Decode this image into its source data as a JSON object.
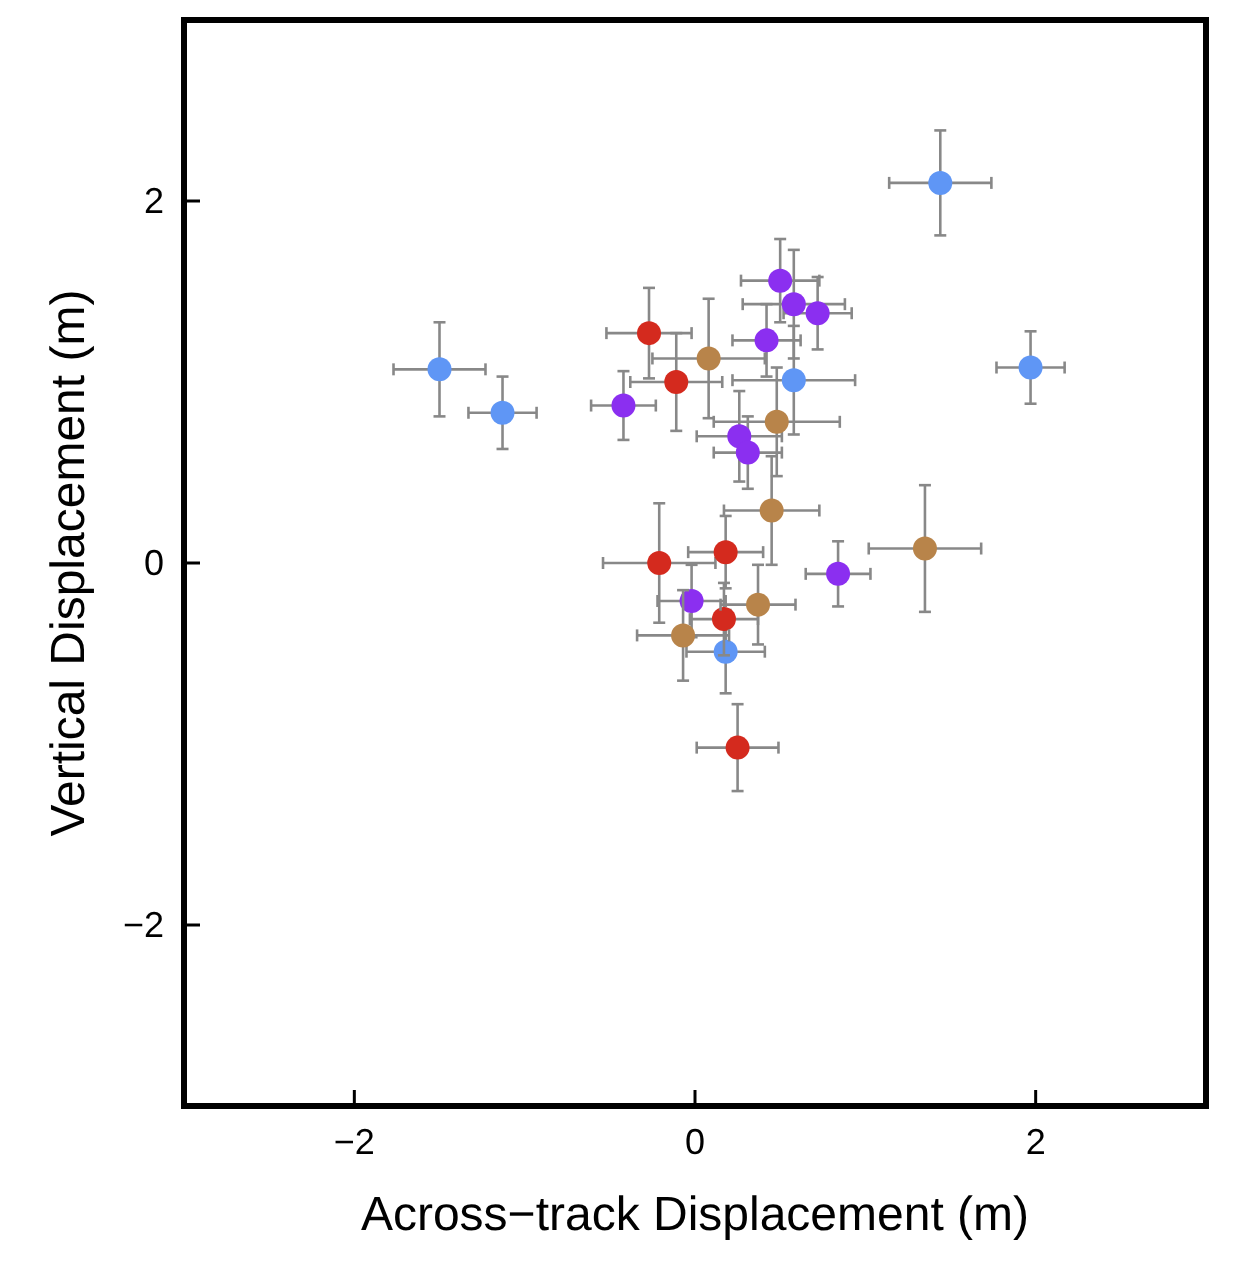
{
  "chart_data": {
    "type": "scatter",
    "xlabel": "Across−track Displacement (m)",
    "ylabel": "Vertical Displacement (m)",
    "xlim": [
      -3,
      3
    ],
    "ylim": [
      -3,
      3
    ],
    "xticks": [
      {
        "value": -2,
        "label": "−2"
      },
      0,
      2
    ],
    "yticks": [
      {
        "value": -2,
        "label": "−2"
      },
      0,
      2
    ],
    "grid": false,
    "marker": "circle",
    "series": [
      {
        "color": "#5f96f5",
        "x": [
          -1.5,
          -1.13,
          1.44,
          1.97,
          0.58,
          0.18
        ],
        "values": [
          1.07,
          0.83,
          2.1,
          1.08,
          1.01,
          -0.49
        ],
        "xerrors": [
          0.27,
          0.2,
          0.3,
          0.2,
          0.36,
          0.23
        ],
        "errors": [
          0.26,
          0.2,
          0.29,
          0.2,
          0.3,
          0.23
        ]
      },
      {
        "color": "#d42a1e",
        "x": [
          -0.27,
          -0.11,
          -0.21,
          0.18,
          0.17,
          0.25
        ],
        "values": [
          1.27,
          1.0,
          0.0,
          0.06,
          -0.31,
          -1.02
        ],
        "xerrors": [
          0.25,
          0.27,
          0.33,
          0.22,
          0.2,
          0.24
        ],
        "errors": [
          0.25,
          0.27,
          0.33,
          0.2,
          0.2,
          0.24
        ]
      },
      {
        "color": "#8b2ff0",
        "x": [
          -0.42,
          0.5,
          0.58,
          0.72,
          0.42,
          0.26,
          0.31,
          -0.02,
          0.84
        ],
        "values": [
          0.87,
          1.56,
          1.43,
          1.38,
          1.23,
          0.7,
          0.61,
          -0.21,
          -0.06
        ],
        "xerrors": [
          0.19,
          0.23,
          0.3,
          0.2,
          0.2,
          0.25,
          0.2,
          0.2,
          0.19
        ],
        "errors": [
          0.19,
          0.23,
          0.3,
          0.2,
          0.2,
          0.25,
          0.2,
          0.2,
          0.18
        ]
      },
      {
        "color": "#b8844a",
        "x": [
          0.08,
          0.48,
          0.45,
          1.35,
          0.37,
          -0.07
        ],
        "values": [
          1.13,
          0.78,
          0.29,
          0.08,
          -0.23,
          -0.4
        ],
        "xerrors": [
          0.33,
          0.37,
          0.28,
          0.33,
          0.22,
          0.27
        ],
        "errors": [
          0.33,
          0.3,
          0.3,
          0.35,
          0.22,
          0.25
        ]
      }
    ]
  }
}
